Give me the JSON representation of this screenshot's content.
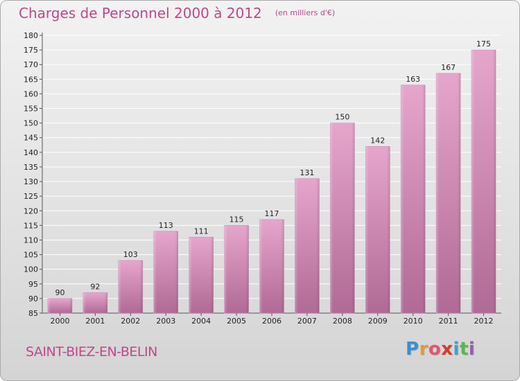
{
  "header": {
    "title": "Charges de Personnel 2000 à 2012",
    "unit_note": "(en milliers d'€)"
  },
  "footer": {
    "location": "SAINT-BIEZ-EN-BELIN",
    "logo_letters": [
      "P",
      "r",
      "o",
      "x",
      "i",
      "t",
      "i"
    ],
    "logo_colors": [
      "#3a8fd0",
      "#e89a2c",
      "#e4556e",
      "#d23d2a",
      "#3aa0d8",
      "#5ab84a",
      "#9b59b6"
    ]
  },
  "colors": {
    "bar_top": "#e6a6cc",
    "bar_bottom": "#b06a95",
    "text": "#c0468a"
  },
  "chart_data": {
    "type": "bar",
    "categories": [
      "2000",
      "2001",
      "2002",
      "2003",
      "2004",
      "2005",
      "2006",
      "2007",
      "2008",
      "2009",
      "2010",
      "2011",
      "2012"
    ],
    "values": [
      90,
      92,
      103,
      113,
      111,
      115,
      117,
      131,
      150,
      142,
      163,
      167,
      175
    ],
    "data_labels": [
      "90",
      "92",
      "103",
      "113",
      "111",
      "115",
      "117",
      "131",
      "150",
      "142",
      "163",
      "167",
      "175"
    ],
    "ylim": [
      85,
      180
    ],
    "yticks": [
      85,
      90,
      95,
      100,
      105,
      110,
      115,
      120,
      125,
      130,
      135,
      140,
      145,
      150,
      155,
      160,
      165,
      170,
      175,
      180
    ],
    "grid": true,
    "title": "Charges de Personnel 2000 à 2012",
    "xlabel": "",
    "ylabel": ""
  }
}
